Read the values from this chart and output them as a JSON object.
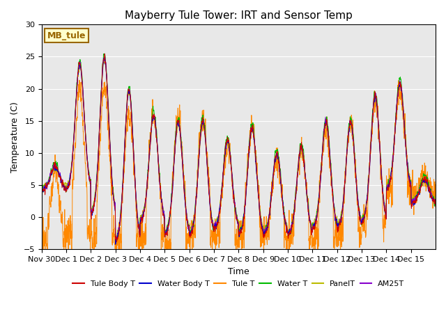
{
  "title": "Mayberry Tule Tower: IRT and Sensor Temp",
  "xlabel": "Time",
  "ylabel": "Temperature (C)",
  "ylim": [
    -5,
    30
  ],
  "yticks": [
    -5,
    0,
    5,
    10,
    15,
    20,
    25,
    30
  ],
  "plot_bg_color": "#e8e8e8",
  "series": [
    {
      "label": "Tule Body T",
      "color": "#cc0000"
    },
    {
      "label": "Water Body T",
      "color": "#0000cc"
    },
    {
      "label": "Tule T",
      "color": "#ff8800"
    },
    {
      "label": "Water T",
      "color": "#00bb00"
    },
    {
      "label": "PanelT",
      "color": "#bbbb00"
    },
    {
      "label": "AM25T",
      "color": "#8800cc"
    }
  ],
  "annotation_text": "MB_tule",
  "annotation_color": "#996600",
  "annotation_bg": "#ffffcc",
  "n_days": 16,
  "xticklabels": [
    "Nov 30",
    "Dec 1",
    "Dec 2",
    "Dec 3",
    "Dec 4",
    "Dec 5",
    "Dec 6",
    "Dec 7",
    "Dec 8",
    "Dec 9",
    "Dec 10",
    "Dec 11",
    "Dec 12",
    "Dec 13",
    "Dec 14",
    "Dec 15"
  ],
  "pts_per_day": 144,
  "day_peaks": [
    8,
    24,
    25,
    20,
    16,
    15,
    15,
    12,
    14,
    10,
    11,
    15,
    15,
    19,
    21,
    6
  ],
  "night_mins": [
    4,
    4,
    0,
    -4,
    -1,
    -3,
    -3,
    -2,
    -3,
    -3,
    -3,
    -2,
    -2,
    -1,
    4,
    2
  ],
  "tule_peaks": [
    7,
    20,
    20,
    16,
    16,
    16,
    16,
    11,
    14,
    9,
    10,
    14,
    14,
    18,
    20,
    6
  ],
  "tule_mins": [
    -5,
    -4,
    -4,
    -5,
    -4,
    -5,
    -4,
    -4,
    -4,
    -4,
    -4,
    -4,
    -4,
    -2,
    3,
    3
  ]
}
